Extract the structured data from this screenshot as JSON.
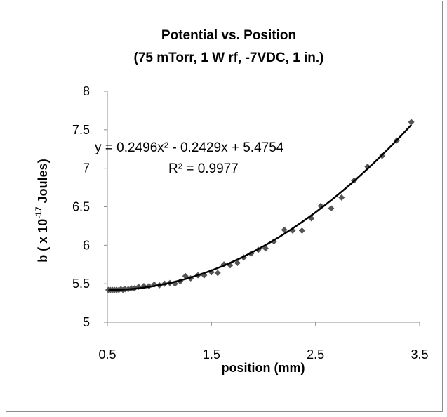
{
  "chart_data": {
    "type": "scatter",
    "title_lines": [
      "Potential vs. Position",
      "(75 mTorr, 1 W rf, -7VDC, 1 in.)"
    ],
    "xlabel": "position (mm)",
    "ylabel": {
      "prefix": "b ( x 10",
      "exponent": "-17",
      "suffix": " Joules)"
    },
    "xlim": [
      0.5,
      3.5
    ],
    "ylim": [
      5,
      8
    ],
    "x_ticks": [
      "0.5",
      "1.5",
      "2.5",
      "3.5"
    ],
    "x_tick_values": [
      0.5,
      1.5,
      2.5,
      3.5
    ],
    "y_ticks": [
      "5",
      "5.5",
      "6",
      "6.5",
      "7",
      "7.5",
      "8"
    ],
    "y_tick_values": [
      5,
      5.5,
      6,
      6.5,
      7,
      7.5,
      8
    ],
    "grid": false,
    "legend": "none",
    "annotations": {
      "equation": "y = 0.2496x² - 0.2429x + 5.4754",
      "r_squared": "R² = 0.9977"
    },
    "trendline": {
      "type": "polynomial",
      "coefficients": [
        0.2496,
        -0.2429,
        5.4754
      ],
      "color": "#000000"
    },
    "marker_color": "#555555",
    "points": [
      [
        0.51,
        5.42
      ],
      [
        0.53,
        5.42
      ],
      [
        0.55,
        5.42
      ],
      [
        0.57,
        5.42
      ],
      [
        0.59,
        5.42
      ],
      [
        0.61,
        5.42
      ],
      [
        0.63,
        5.43
      ],
      [
        0.65,
        5.42
      ],
      [
        0.67,
        5.43
      ],
      [
        0.7,
        5.43
      ],
      [
        0.73,
        5.44
      ],
      [
        0.76,
        5.44
      ],
      [
        0.8,
        5.46
      ],
      [
        0.85,
        5.47
      ],
      [
        0.9,
        5.47
      ],
      [
        0.95,
        5.49
      ],
      [
        1.0,
        5.48
      ],
      [
        1.05,
        5.5
      ],
      [
        1.1,
        5.51
      ],
      [
        1.15,
        5.5
      ],
      [
        1.2,
        5.53
      ],
      [
        1.25,
        5.6
      ],
      [
        1.3,
        5.57
      ],
      [
        1.37,
        5.61
      ],
      [
        1.43,
        5.61
      ],
      [
        1.5,
        5.65
      ],
      [
        1.56,
        5.64
      ],
      [
        1.62,
        5.75
      ],
      [
        1.68,
        5.74
      ],
      [
        1.75,
        5.77
      ],
      [
        1.81,
        5.84
      ],
      [
        1.88,
        5.89
      ],
      [
        1.95,
        5.94
      ],
      [
        2.02,
        5.96
      ],
      [
        2.1,
        6.05
      ],
      [
        2.2,
        6.2
      ],
      [
        2.28,
        6.19
      ],
      [
        2.37,
        6.19
      ],
      [
        2.46,
        6.35
      ],
      [
        2.55,
        6.51
      ],
      [
        2.65,
        6.48
      ],
      [
        2.75,
        6.62
      ],
      [
        2.87,
        6.84
      ],
      [
        3.0,
        7.02
      ],
      [
        3.14,
        7.16
      ],
      [
        3.28,
        7.36
      ],
      [
        3.42,
        7.6
      ]
    ]
  }
}
